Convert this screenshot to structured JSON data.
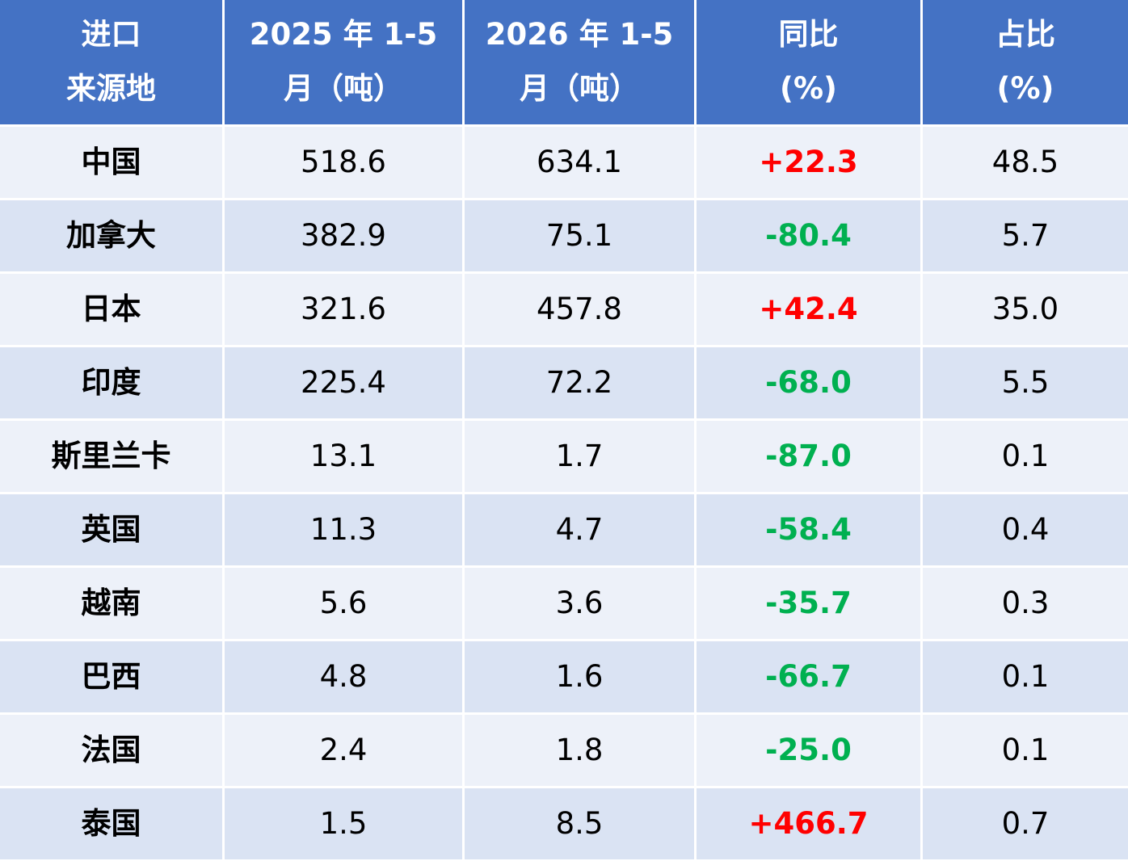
{
  "table": {
    "header": [
      [
        "进口",
        "来源地"
      ],
      [
        "2025 年 1-5",
        "月（吨）"
      ],
      [
        "2026 年 1-5",
        "月（吨）"
      ],
      [
        "同比",
        "(%)"
      ],
      [
        "占比",
        "(%)"
      ]
    ],
    "rows": [
      [
        "中国",
        "518.6",
        "634.1",
        "+22.3",
        "48.5"
      ],
      [
        "加拿大",
        "382.9",
        "75.1",
        "-80.4",
        "5.7"
      ],
      [
        "日本",
        "321.6",
        "457.8",
        "+42.4",
        "35.0"
      ],
      [
        "印度",
        "225.4",
        "72.2",
        "-68.0",
        "5.5"
      ],
      [
        "斯里兰卡",
        "13.1",
        "1.7",
        "-87.0",
        "0.1"
      ],
      [
        "英国",
        "11.3",
        "4.7",
        "-58.4",
        "0.4"
      ],
      [
        "越南",
        "5.6",
        "3.6",
        "-35.7",
        "0.3"
      ],
      [
        "巴西",
        "4.8",
        "1.6",
        "-66.7",
        "0.1"
      ],
      [
        "法国",
        "2.4",
        "1.8",
        "-25.0",
        "0.1"
      ],
      [
        "泰国",
        "1.5",
        "8.5",
        "+466.7",
        "0.7"
      ]
    ]
  }
}
